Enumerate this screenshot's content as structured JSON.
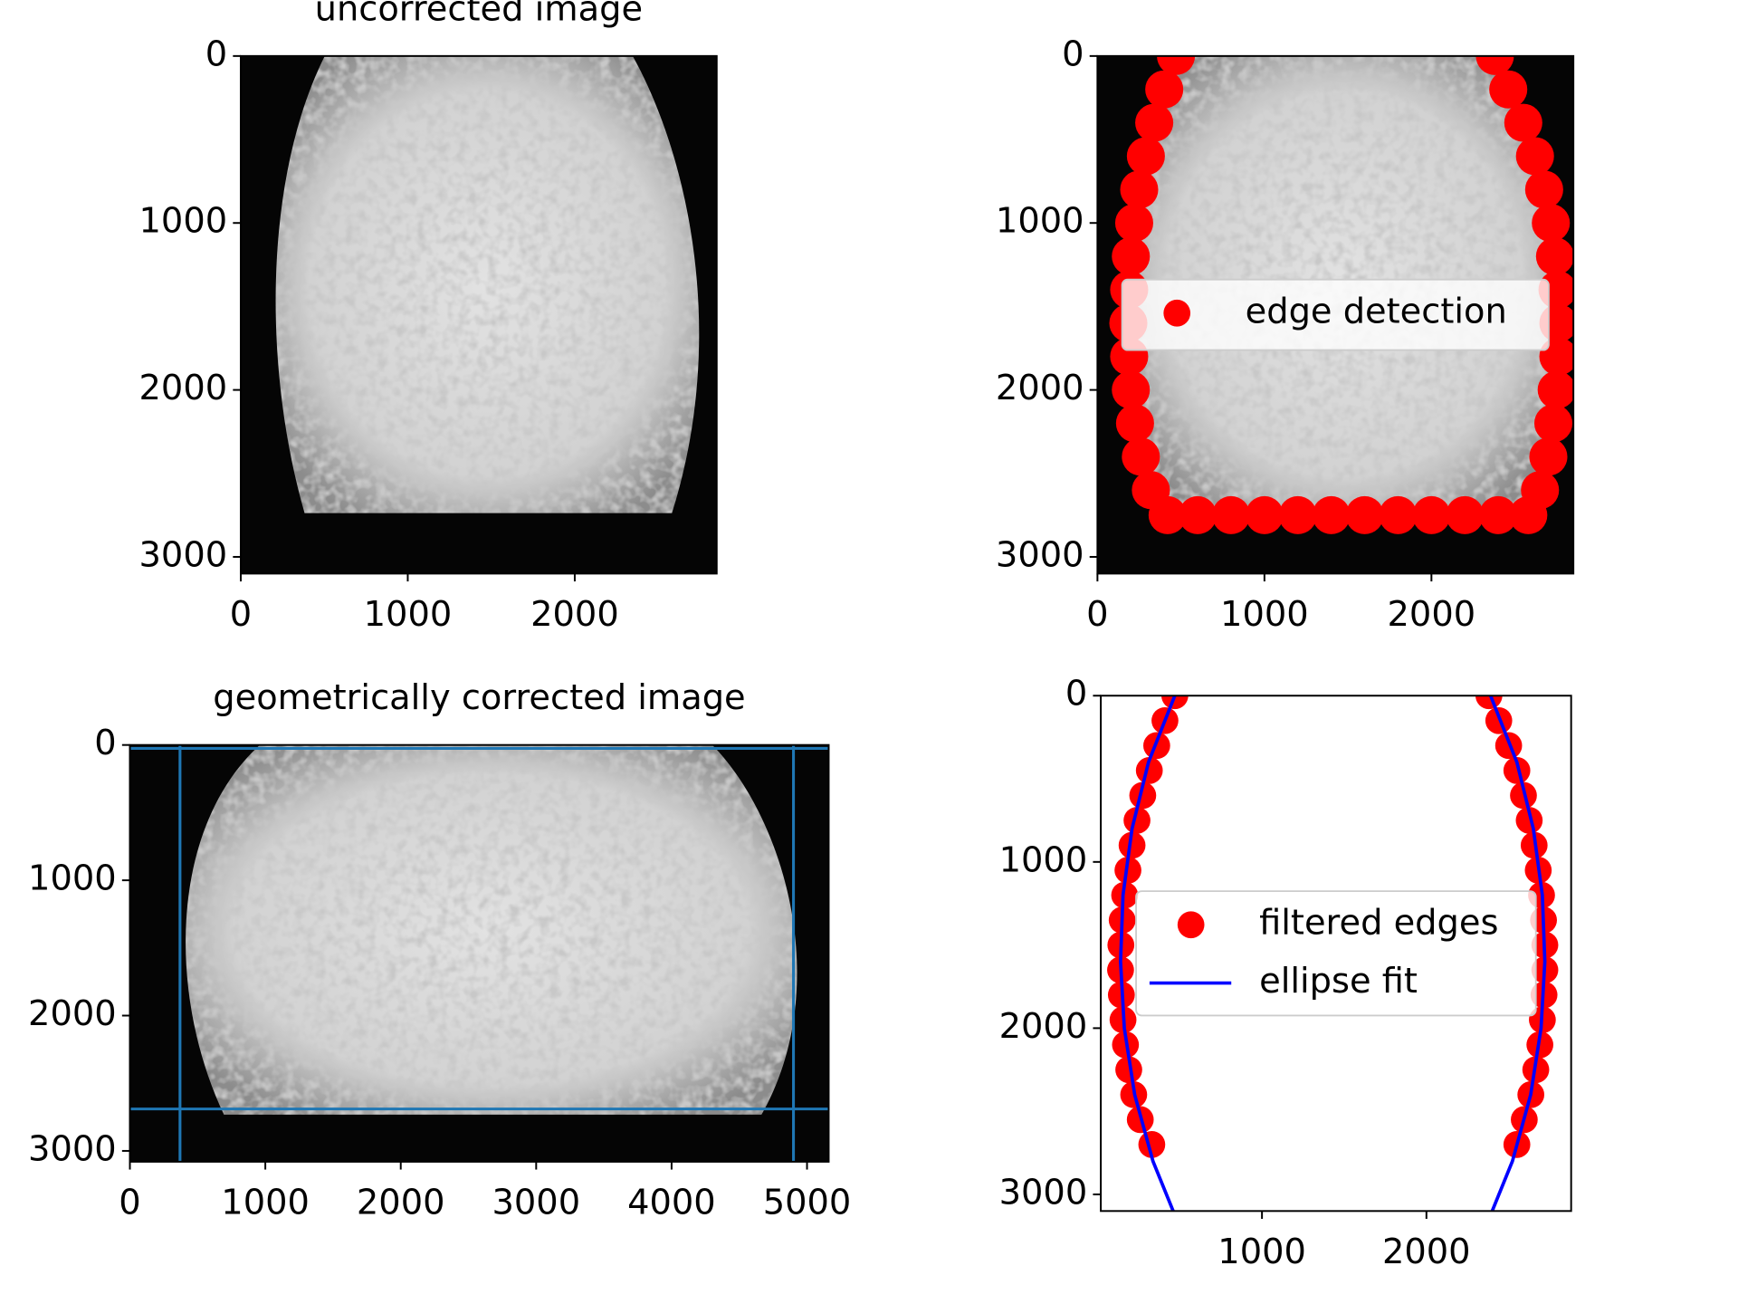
{
  "chart_data": [
    {
      "type": "image",
      "title": "uncorrected image",
      "xlim": [
        0,
        2850
      ],
      "ylim": [
        3100,
        0
      ],
      "xticks": [
        0,
        1000,
        2000
      ],
      "yticks": [
        0,
        1000,
        2000,
        3000
      ]
    },
    {
      "type": "image",
      "xlim": [
        0,
        2850
      ],
      "ylim": [
        3100,
        0
      ],
      "xticks": [
        0,
        1000,
        2000
      ],
      "yticks": [
        0,
        1000,
        2000,
        3000
      ],
      "legend": "center",
      "series": [
        {
          "name": "edge detection",
          "color": "#ff0000",
          "type": "scatter",
          "x": [
            470,
            400,
            340,
            290,
            250,
            220,
            200,
            190,
            185,
            190,
            200,
            225,
            260,
            320,
            420,
            600,
            800,
            1000,
            1200,
            1400,
            1600,
            1800,
            2000,
            2200,
            2400,
            2580,
            2650,
            2700,
            2730,
            2750,
            2760,
            2760,
            2755,
            2740,
            2715,
            2675,
            2620,
            2550,
            2460,
            2380
          ],
          "y": [
            0,
            200,
            400,
            600,
            800,
            1000,
            1200,
            1400,
            1600,
            1800,
            2000,
            2200,
            2400,
            2600,
            2750,
            2750,
            2750,
            2750,
            2750,
            2750,
            2750,
            2750,
            2750,
            2750,
            2750,
            2750,
            2600,
            2400,
            2200,
            2000,
            1800,
            1600,
            1400,
            1200,
            1000,
            800,
            600,
            400,
            200,
            0
          ]
        }
      ]
    },
    {
      "type": "image",
      "title": "geometrically corrected image",
      "xlim": [
        0,
        5160
      ],
      "ylim": [
        3080,
        0
      ],
      "xticks": [
        0,
        1000,
        2000,
        3000,
        4000,
        5000
      ],
      "yticks": [
        0,
        1000,
        2000,
        3000
      ],
      "vlines": [
        370,
        4900
      ],
      "hlines": [
        25,
        2690
      ],
      "line_color": "#1f77b4"
    },
    {
      "type": "scatter",
      "xlim": [
        20,
        2880
      ],
      "ylim": [
        3100,
        0
      ],
      "xticks": [
        1000,
        2000
      ],
      "yticks": [
        0,
        1000,
        2000,
        3000
      ],
      "legend": "center",
      "series": [
        {
          "name": "filtered edges",
          "color": "#ff0000",
          "type": "scatter",
          "x": [
            470,
            410,
            360,
            315,
            275,
            240,
            210,
            185,
            165,
            150,
            142,
            140,
            145,
            155,
            170,
            190,
            220,
            260,
            330,
            2380,
            2440,
            2500,
            2550,
            2590,
            2625,
            2655,
            2680,
            2700,
            2712,
            2720,
            2720,
            2715,
            2705,
            2690,
            2665,
            2635,
            2595,
            2550
          ],
          "y": [
            0,
            150,
            300,
            450,
            600,
            750,
            900,
            1050,
            1200,
            1350,
            1500,
            1650,
            1800,
            1950,
            2100,
            2250,
            2400,
            2550,
            2700,
            0,
            150,
            300,
            450,
            600,
            750,
            900,
            1050,
            1200,
            1350,
            1500,
            1650,
            1800,
            1950,
            2100,
            2250,
            2400,
            2550,
            2700
          ]
        },
        {
          "name": "ellipse fit",
          "color": "#0000ff",
          "type": "line",
          "x": [
            470,
            310,
            210,
            155,
            140,
            163,
            226,
            337,
            460,
            null,
            2390,
            2550,
            2650,
            2705,
            2720,
            2697,
            2634,
            2523,
            2400
          ],
          "y": [
            0,
            400,
            800,
            1200,
            1600,
            2000,
            2400,
            2800,
            3100,
            null,
            0,
            400,
            800,
            1200,
            1600,
            2000,
            2400,
            2800,
            3100
          ]
        }
      ]
    }
  ]
}
